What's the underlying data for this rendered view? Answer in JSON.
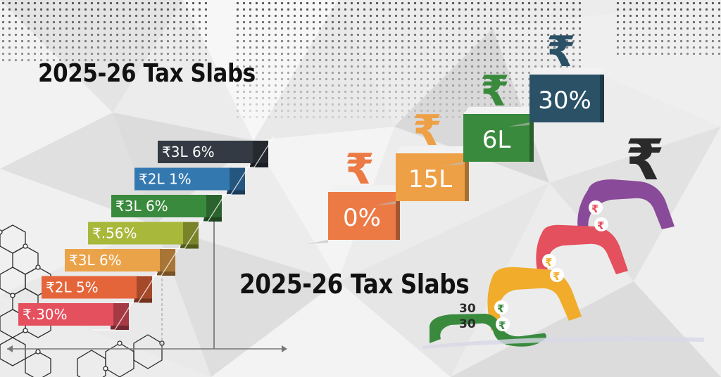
{
  "titles": {
    "top_left": "2025-26 Tax Slabs",
    "center": "2025-26 Tax Slabs"
  },
  "left_staircase": {
    "steps": [
      {
        "label": "₹3L 6%",
        "color": "#333a44"
      },
      {
        "label": "₹2L 1%",
        "color": "#3478b0"
      },
      {
        "label": "₹3L 6%",
        "color": "#3a8a3e"
      },
      {
        "label": "₹.56%",
        "color": "#a8b83a"
      },
      {
        "label": "₹3L 6%",
        "color": "#eba349"
      },
      {
        "label": "₹2L 5%",
        "color": "#e5653a"
      },
      {
        "label": "₹.30%",
        "color": "#e5505e"
      }
    ]
  },
  "right_staircase": {
    "steps": [
      {
        "symbol": "₹",
        "label": "0%",
        "color": "#ec7a45",
        "symbol_color": "#ec7a45"
      },
      {
        "symbol": "₹",
        "label": "15L",
        "color": "#eea046",
        "symbol_color": "#eea046"
      },
      {
        "symbol": "₹",
        "label": "6L",
        "color": "#3a8a3e",
        "symbol_color": "#3a8a3e"
      },
      {
        "symbol": "₹",
        "label": "30%",
        "color": "#2b5167",
        "symbol_color": "#2b5167"
      }
    ]
  },
  "rupee_art": {
    "top_symbol": "₹",
    "small_symbols": [
      "₹",
      "₹",
      "₹",
      "₹",
      "₹",
      "₹"
    ],
    "bottom_numbers": [
      "30",
      "30"
    ],
    "colors": [
      "#3a8a3e",
      "#f0ac2a",
      "#e5505e",
      "#8a4a9a"
    ]
  }
}
